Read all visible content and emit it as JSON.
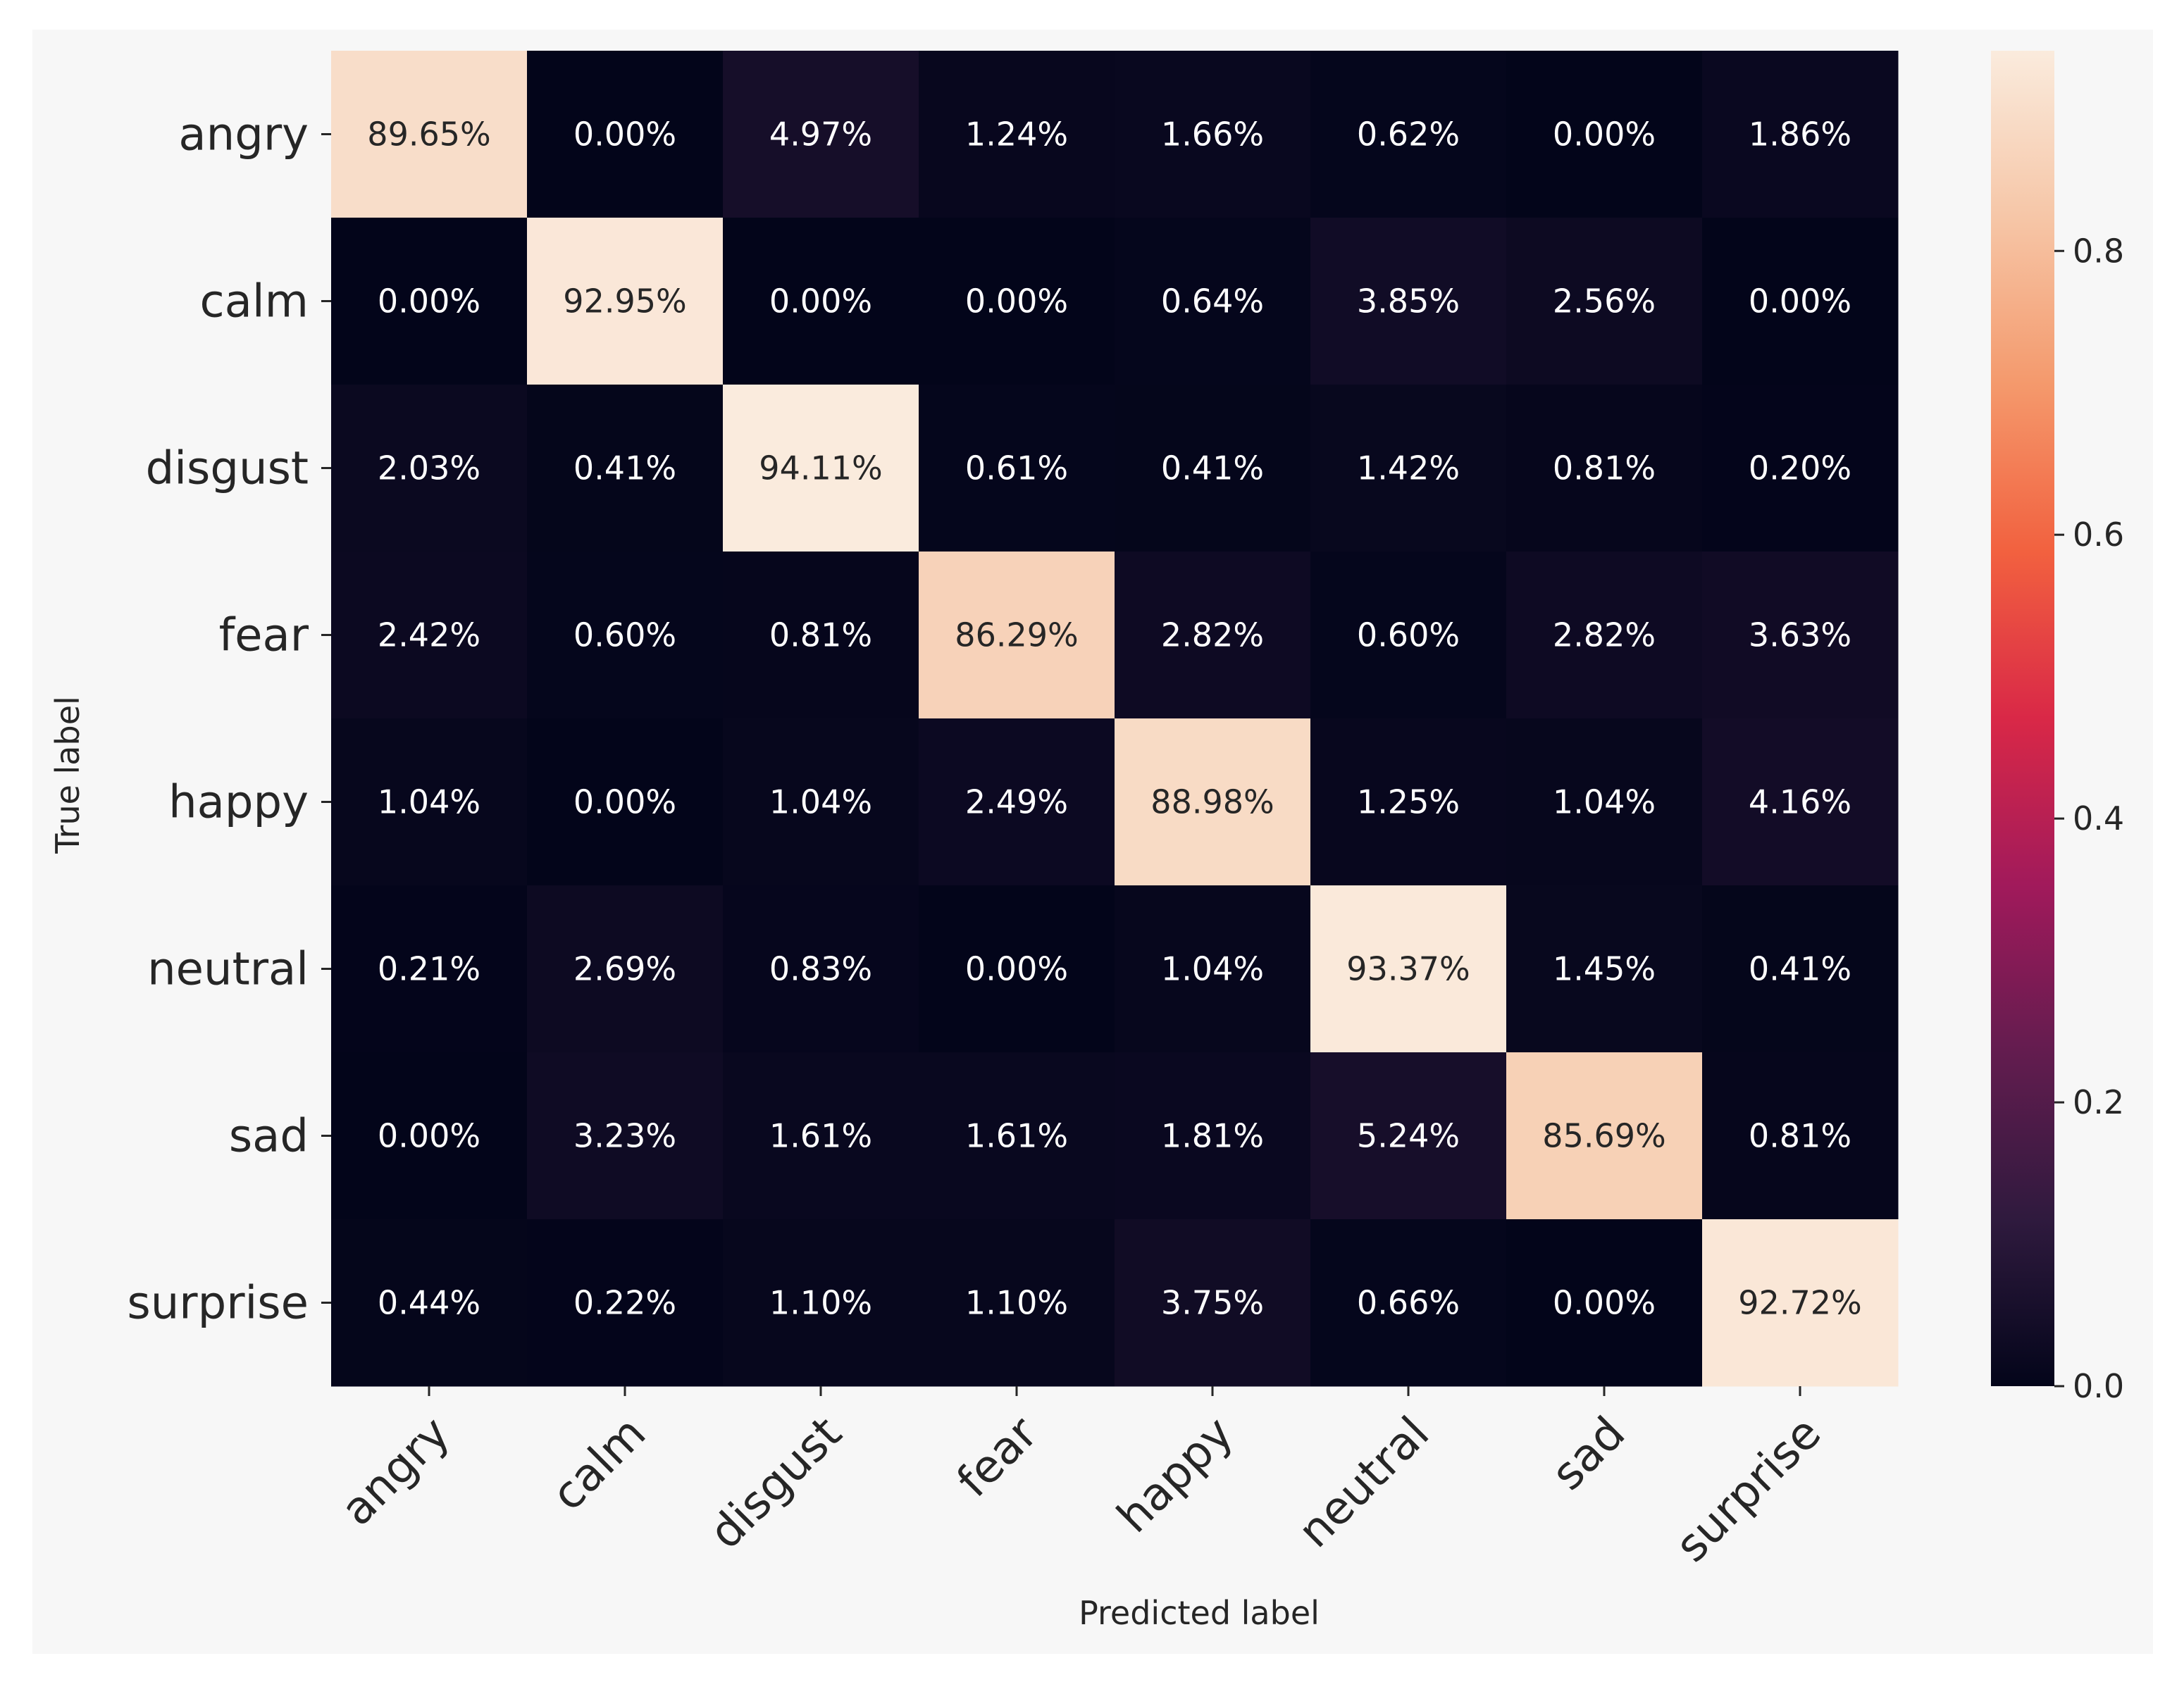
{
  "chart_data": {
    "type": "heatmap",
    "title": "",
    "xlabel": "Predicted label",
    "ylabel": "True label",
    "x_categories": [
      "angry",
      "calm",
      "disgust",
      "fear",
      "happy",
      "neutral",
      "sad",
      "surprise"
    ],
    "y_categories": [
      "angry",
      "calm",
      "disgust",
      "fear",
      "happy",
      "neutral",
      "sad",
      "surprise"
    ],
    "values": [
      [
        0.8965,
        0.0,
        0.0497,
        0.0124,
        0.0166,
        0.0062,
        0.0,
        0.0186
      ],
      [
        0.0,
        0.9295,
        0.0,
        0.0,
        0.0064,
        0.0385,
        0.0256,
        0.0
      ],
      [
        0.0203,
        0.0041,
        0.9411,
        0.0061,
        0.0041,
        0.0142,
        0.0081,
        0.002
      ],
      [
        0.0242,
        0.006,
        0.0081,
        0.8629,
        0.0282,
        0.006,
        0.0282,
        0.0363
      ],
      [
        0.0104,
        0.0,
        0.0104,
        0.0249,
        0.8898,
        0.0125,
        0.0104,
        0.0416
      ],
      [
        0.0021,
        0.0269,
        0.0083,
        0.0,
        0.0104,
        0.9337,
        0.0145,
        0.0041
      ],
      [
        0.0,
        0.0323,
        0.0161,
        0.0161,
        0.0181,
        0.0524,
        0.8569,
        0.0081
      ],
      [
        0.0044,
        0.0022,
        0.011,
        0.011,
        0.0375,
        0.0066,
        0.0,
        0.9272
      ]
    ],
    "cell_labels": [
      [
        "89.65%",
        "0.00%",
        "4.97%",
        "1.24%",
        "1.66%",
        "0.62%",
        "0.00%",
        "1.86%"
      ],
      [
        "0.00%",
        "92.95%",
        "0.00%",
        "0.00%",
        "0.64%",
        "3.85%",
        "2.56%",
        "0.00%"
      ],
      [
        "2.03%",
        "0.41%",
        "94.11%",
        "0.61%",
        "0.41%",
        "1.42%",
        "0.81%",
        "0.20%"
      ],
      [
        "2.42%",
        "0.60%",
        "0.81%",
        "86.29%",
        "2.82%",
        "0.60%",
        "2.82%",
        "3.63%"
      ],
      [
        "1.04%",
        "0.00%",
        "1.04%",
        "2.49%",
        "88.98%",
        "1.25%",
        "1.04%",
        "4.16%"
      ],
      [
        "0.21%",
        "2.69%",
        "0.83%",
        "0.00%",
        "1.04%",
        "93.37%",
        "1.45%",
        "0.41%"
      ],
      [
        "0.00%",
        "3.23%",
        "1.61%",
        "1.61%",
        "1.81%",
        "5.24%",
        "85.69%",
        "0.81%"
      ],
      [
        "0.44%",
        "0.22%",
        "1.10%",
        "1.10%",
        "3.75%",
        "0.66%",
        "0.00%",
        "92.72%"
      ]
    ],
    "colorbar": {
      "colormap": "rocket",
      "range": [
        0.0,
        0.9411
      ],
      "ticks": [
        0.0,
        0.2,
        0.4,
        0.6,
        0.8
      ],
      "tick_labels": [
        "0.0",
        "0.2",
        "0.4",
        "0.6",
        "0.8"
      ]
    }
  },
  "colors": {
    "panel_background": "#f7f7f7",
    "axis_text": "#262626",
    "cell_text_dark_cells": "#ffffff",
    "cell_text_light_cells": "#262626",
    "colormap_stops": [
      "#03051a",
      "#2f1a3e",
      "#631c4f",
      "#a11a5b",
      "#d92847",
      "#f2613f",
      "#f4996c",
      "#f6c6a7",
      "#faebdd"
    ]
  }
}
